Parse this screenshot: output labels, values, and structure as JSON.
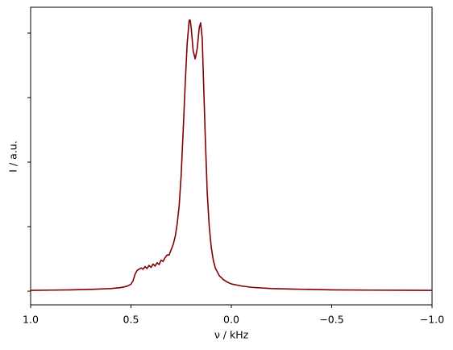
{
  "chart_data": {
    "type": "line",
    "xlabel": "ν / kHz",
    "ylabel": "I / a.u.",
    "xlim": [
      1.0,
      -1.0
    ],
    "xticks": [
      {
        "value": 1.0,
        "label": "1.0"
      },
      0.5,
      {
        "value": 0.0,
        "label": "0.0"
      },
      {
        "value": -0.5,
        "label": "−0.5"
      },
      {
        "value": -1.0,
        "label": "−1.0"
      }
    ],
    "ylim": [
      -0.053,
      1.1
    ],
    "yticks": [
      0,
      0.25,
      0.5,
      0.75,
      1.0
    ],
    "grid": false,
    "x": [
      1.0,
      0.9,
      0.8,
      0.7,
      0.6,
      0.55,
      0.52,
      0.5,
      0.49,
      0.48,
      0.47,
      0.46,
      0.45,
      0.44,
      0.43,
      0.42,
      0.41,
      0.4,
      0.39,
      0.38,
      0.37,
      0.36,
      0.35,
      0.34,
      0.33,
      0.32,
      0.31,
      0.3,
      0.29,
      0.28,
      0.27,
      0.26,
      0.25,
      0.24,
      0.23,
      0.22,
      0.21,
      0.205,
      0.2,
      0.19,
      0.18,
      0.17,
      0.16,
      0.153,
      0.145,
      0.14,
      0.13,
      0.12,
      0.11,
      0.1,
      0.09,
      0.08,
      0.06,
      0.04,
      0.02,
      0.0,
      -0.05,
      -0.1,
      -0.2,
      -0.3,
      -0.5,
      -0.7,
      -1.0
    ],
    "series": [
      {
        "color": "#800000",
        "values": [
          0.003,
          0.004,
          0.005,
          0.007,
          0.01,
          0.014,
          0.019,
          0.027,
          0.04,
          0.065,
          0.08,
          0.085,
          0.09,
          0.085,
          0.095,
          0.088,
          0.1,
          0.092,
          0.105,
          0.097,
          0.11,
          0.103,
          0.12,
          0.115,
          0.13,
          0.14,
          0.14,
          0.16,
          0.18,
          0.21,
          0.26,
          0.33,
          0.45,
          0.62,
          0.8,
          0.96,
          1.05,
          1.05,
          1.02,
          0.93,
          0.9,
          0.94,
          1.02,
          1.04,
          0.98,
          0.85,
          0.6,
          0.38,
          0.25,
          0.17,
          0.12,
          0.09,
          0.06,
          0.045,
          0.035,
          0.028,
          0.02,
          0.015,
          0.01,
          0.008,
          0.005,
          0.004,
          0.003
        ]
      }
    ]
  }
}
